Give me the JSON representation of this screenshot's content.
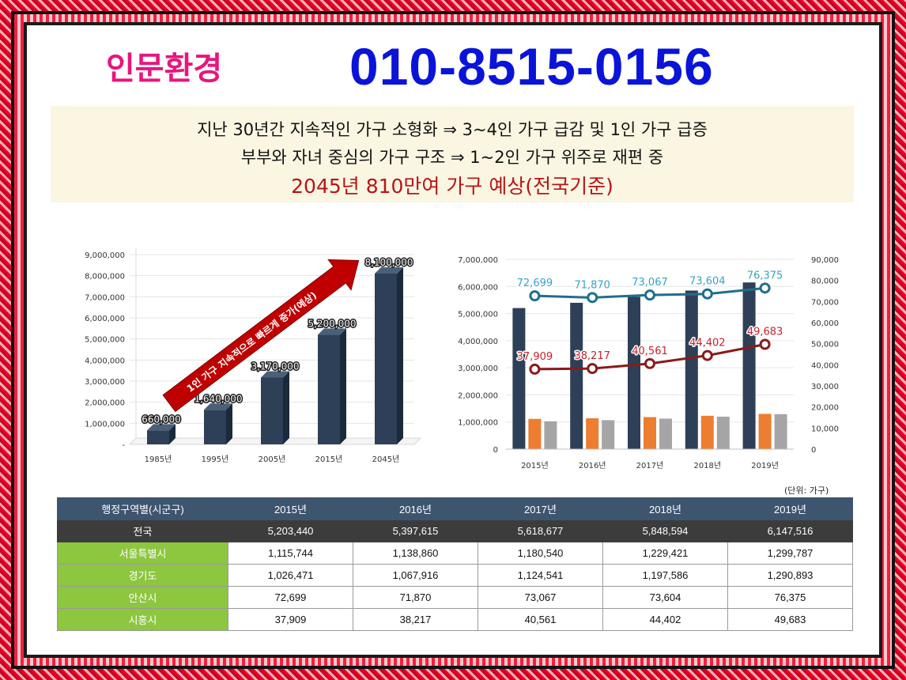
{
  "header": {
    "brand": "인문환경",
    "phone": "010-8515-0156"
  },
  "banner": {
    "line1": "지난 30년간 지속적인 가구 소형화 ⇒ 3~4인 가구 급감 및 1인 가구 급증",
    "line2": "부부와 자녀 중심의 가구 구조 ⇒ 1~2인 가구 위주로 재편 중",
    "line3": "2045년 810만여 가구 예상(전국기준)"
  },
  "colors": {
    "bar_dark": "#2e4057",
    "orange": "#ed7d31",
    "gray": "#a5a5a5",
    "blue_line": "#1f6f8b",
    "red_line": "#8b1a1a",
    "arrow": "#c00000"
  },
  "chart_data": [
    {
      "type": "bar",
      "categories": [
        "1985년",
        "1995년",
        "2005년",
        "2015년",
        "2045년"
      ],
      "values": [
        660000,
        1640000,
        3170000,
        5200000,
        8100000
      ],
      "value_labels": [
        "660,000",
        "1,640,000",
        "3,170,000",
        "5,200,000",
        "8,100,000"
      ],
      "ylim": [
        0,
        9000000
      ],
      "y_ticks": [
        "-",
        "1,000,000",
        "2,000,000",
        "3,000,000",
        "4,000,000",
        "5,000,000",
        "6,000,000",
        "7,000,000",
        "8,000,000",
        "9,000,000"
      ],
      "annotation": "1인 가구 지속적으로 빠르게 증가(예상)"
    },
    {
      "type": "bar",
      "categories": [
        "2015년",
        "2016년",
        "2017년",
        "2018년",
        "2019년"
      ],
      "series": [
        {
          "name": "전국",
          "axis": "left",
          "kind": "bar",
          "values": [
            5203440,
            5397615,
            5618677,
            5848594,
            6147516
          ]
        },
        {
          "name": "서울특별시",
          "axis": "left",
          "kind": "bar",
          "values": [
            1115744,
            1138860,
            1180540,
            1229421,
            1299787
          ]
        },
        {
          "name": "경기도",
          "axis": "left",
          "kind": "bar",
          "values": [
            1026471,
            1067916,
            1124541,
            1197586,
            1290893
          ]
        },
        {
          "name": "안산시",
          "axis": "right",
          "kind": "line",
          "values": [
            72699,
            71870,
            73067,
            73604,
            76375
          ],
          "labels": [
            "72,699",
            "71,870",
            "73,067",
            "73,604",
            "76,375"
          ]
        },
        {
          "name": "시흥시",
          "axis": "right",
          "kind": "line",
          "values": [
            37909,
            38217,
            40561,
            44402,
            49683
          ],
          "labels": [
            "37,909",
            "38,217",
            "40,561",
            "44,402",
            "49,683"
          ]
        }
      ],
      "ylim_left": [
        0,
        7000000
      ],
      "ylim_right": [
        0,
        90000
      ],
      "y_ticks_left": [
        "0",
        "1,000,000",
        "2,000,000",
        "3,000,000",
        "4,000,000",
        "5,000,000",
        "6,000,000",
        "7,000,000"
      ],
      "y_ticks_right": [
        "0",
        "10,000",
        "20,000",
        "30,000",
        "40,000",
        "50,000",
        "60,000",
        "70,000",
        "80,000",
        "90,000"
      ],
      "legend_position": "bottom"
    }
  ],
  "table": {
    "unit": "(단위: 가구)",
    "header": [
      "행정구역별(시군구)",
      "2015년",
      "2016년",
      "2017년",
      "2018년",
      "2019년"
    ],
    "rows": [
      [
        "전국",
        "5,203,440",
        "5,397,615",
        "5,618,677",
        "5,848,594",
        "6,147,516"
      ],
      [
        "서울특별시",
        "1,115,744",
        "1,138,860",
        "1,180,540",
        "1,229,421",
        "1,299,787"
      ],
      [
        "경기도",
        "1,026,471",
        "1,067,916",
        "1,124,541",
        "1,197,586",
        "1,290,893"
      ],
      [
        "안산시",
        "72,699",
        "71,870",
        "73,067",
        "73,604",
        "76,375"
      ],
      [
        "시흥시",
        "37,909",
        "38,217",
        "40,561",
        "44,402",
        "49,683"
      ]
    ]
  }
}
